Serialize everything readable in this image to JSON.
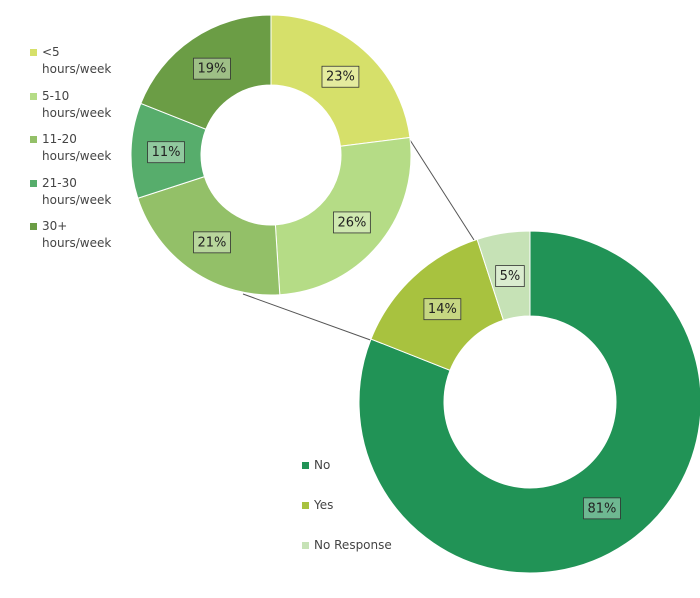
{
  "chart_data": [
    {
      "type": "donut",
      "categories": [
        "<5 hours/week",
        "5-10 hours/week",
        "11-20 hours/week",
        "21-30 hours/week",
        "30+ hours/week"
      ],
      "values": [
        23,
        26,
        21,
        11,
        19
      ],
      "value_labels": [
        "23%",
        "26%",
        "21%",
        "11%",
        "19%"
      ],
      "colors": [
        "#d6e06a",
        "#b5dc86",
        "#93c068",
        "#57ad6c",
        "#6b9d45"
      ]
    },
    {
      "type": "donut",
      "categories": [
        "No",
        "Yes",
        "No Response"
      ],
      "values": [
        81,
        14,
        5
      ],
      "value_labels": [
        "81%",
        "14%",
        "5%"
      ],
      "colors": [
        "#219356",
        "#a8c23f",
        "#c6e2b6"
      ]
    }
  ]
}
